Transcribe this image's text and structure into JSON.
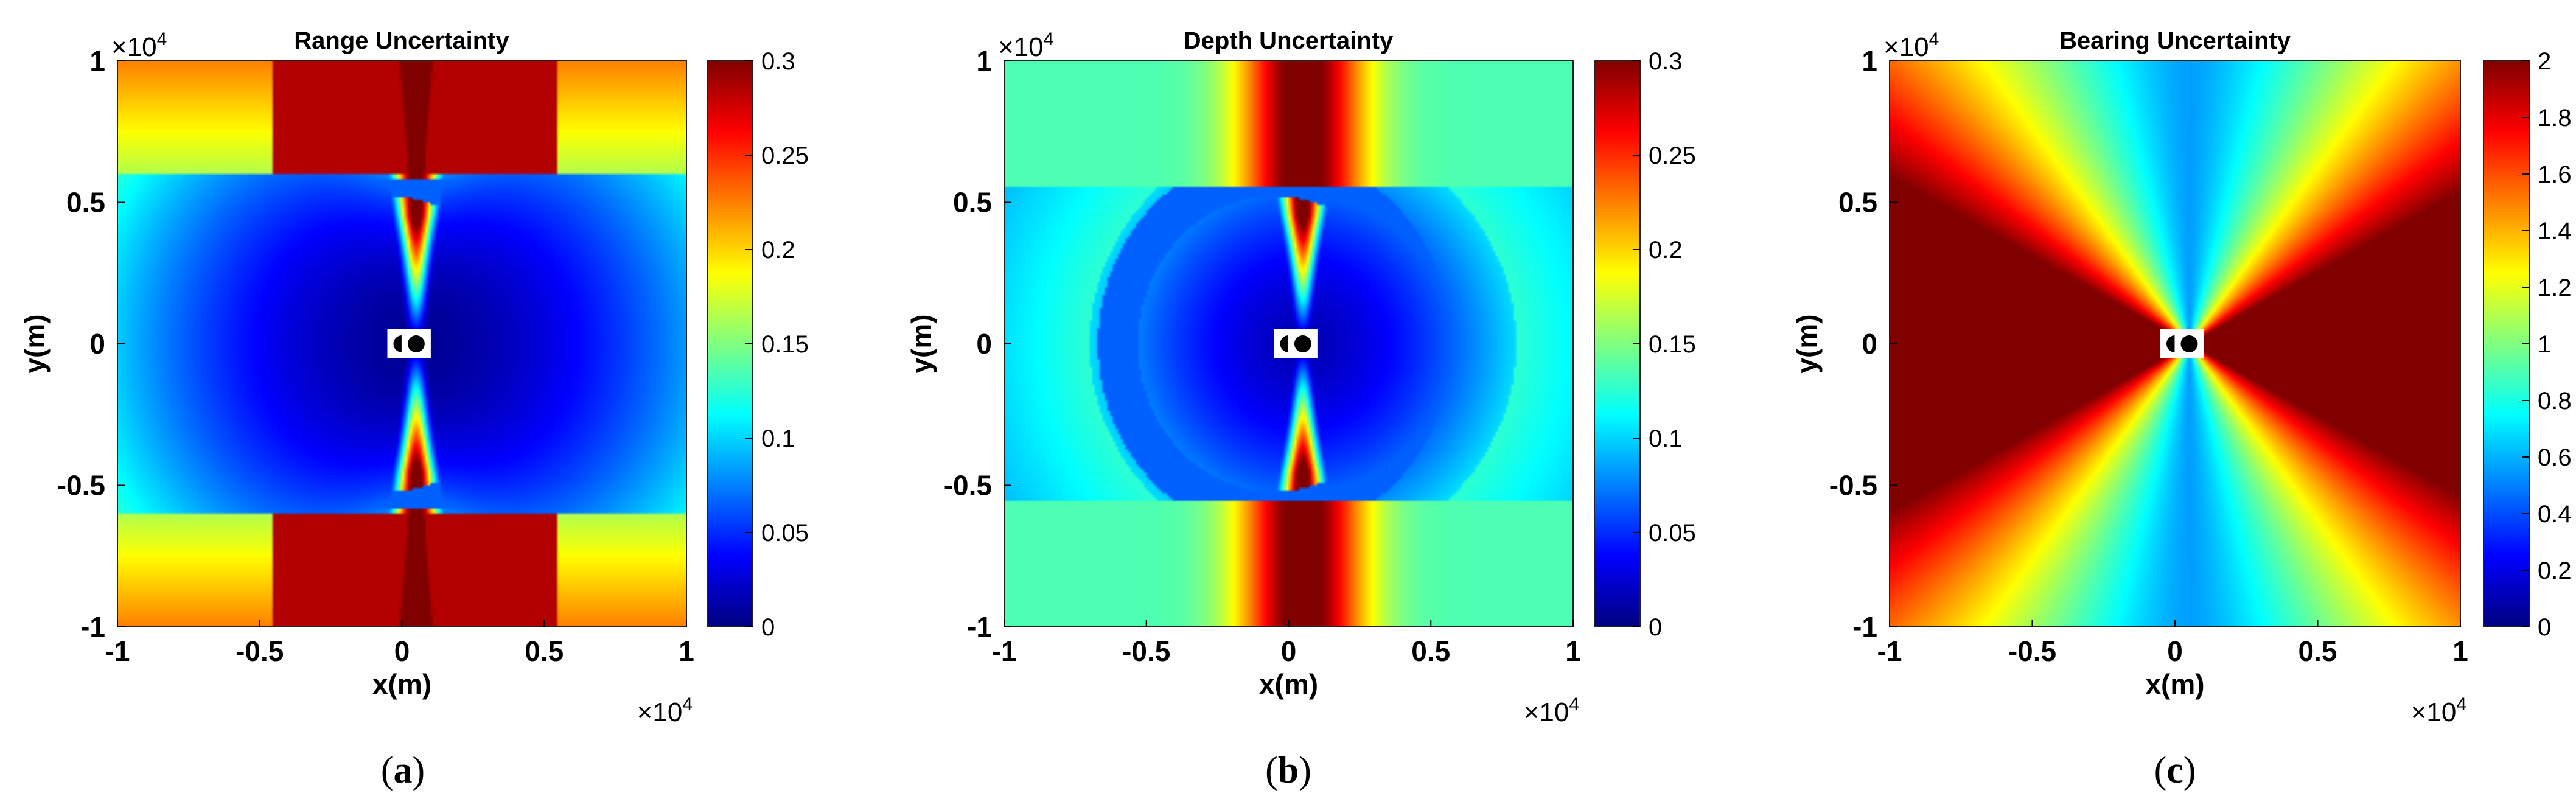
{
  "figure": {
    "captions": [
      "(a)",
      "(b)",
      "(c)"
    ]
  },
  "chart_data": [
    {
      "type": "heatmap",
      "title": "Range Uncertainty",
      "xlabel": "x(m)",
      "ylabel": "y(m)",
      "xlim": [
        -1,
        1
      ],
      "ylim": [
        -1,
        1
      ],
      "x_ticks": [
        "-1",
        "-0.5",
        "0",
        "0.5",
        "1"
      ],
      "y_ticks": [
        "-1",
        "-0.5",
        "0",
        "0.5",
        "1"
      ],
      "x_exponent": "×10",
      "x_exponent_power": "4",
      "y_exponent": "×10",
      "y_exponent_power": "4",
      "colorbar": {
        "min": 0,
        "max": 0.3,
        "ticks": [
          "0",
          "0.05",
          "0.1",
          "0.15",
          "0.2",
          "0.25",
          "0.3"
        ],
        "colormap": "jet"
      },
      "pattern": "range",
      "sensors": [
        [
          0.0,
          0.0
        ],
        [
          0.1,
          0.0
        ]
      ]
    },
    {
      "type": "heatmap",
      "title": "Depth Uncertainty",
      "xlabel": "x(m)",
      "ylabel": "y(m)",
      "xlim": [
        -1,
        1
      ],
      "ylim": [
        -1,
        1
      ],
      "x_ticks": [
        "-1",
        "-0.5",
        "0",
        "0.5",
        "1"
      ],
      "y_ticks": [
        "-1",
        "-0.5",
        "0",
        "0.5",
        "1"
      ],
      "x_exponent": "×10",
      "x_exponent_power": "4",
      "y_exponent": "×10",
      "y_exponent_power": "4",
      "colorbar": {
        "min": 0,
        "max": 0.3,
        "ticks": [
          "0",
          "0.05",
          "0.1",
          "0.15",
          "0.2",
          "0.25",
          "0.3"
        ],
        "colormap": "jet"
      },
      "pattern": "depth",
      "sensors": [
        [
          0.0,
          0.0
        ],
        [
          0.1,
          0.0
        ]
      ]
    },
    {
      "type": "heatmap",
      "title": "Bearing Uncertainty",
      "xlabel": "x(m)",
      "ylabel": "y(m)",
      "xlim": [
        -1,
        1
      ],
      "ylim": [
        -1,
        1
      ],
      "x_ticks": [
        "-1",
        "-0.5",
        "0",
        "0.5",
        "1"
      ],
      "y_ticks": [
        "-1",
        "-0.5",
        "0",
        "0.5",
        "1"
      ],
      "x_exponent": "×10",
      "x_exponent_power": "4",
      "y_exponent": "×10",
      "y_exponent_power": "4",
      "colorbar": {
        "min": 0,
        "max": 2,
        "ticks": [
          "0",
          "0.2",
          "0.4",
          "0.6",
          "0.8",
          "1",
          "1.2",
          "1.4",
          "1.6",
          "1.8",
          "2"
        ],
        "colormap": "jet"
      },
      "pattern": "bearing",
      "sensors": [
        [
          0.0,
          0.0
        ],
        [
          0.1,
          0.0
        ]
      ]
    }
  ]
}
